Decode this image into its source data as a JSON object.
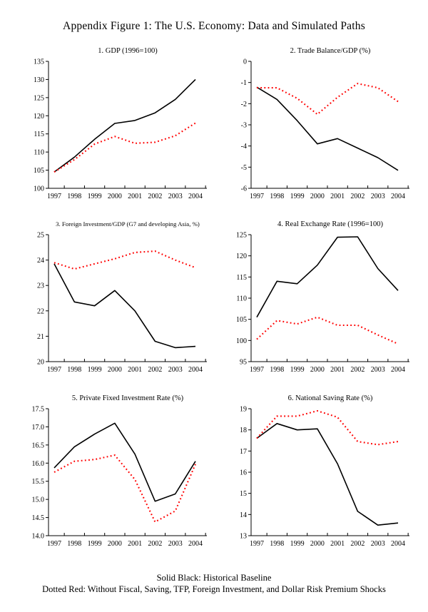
{
  "page": {
    "title": "Appendix Figure 1: The U.S. Economy: Data and Simulated Paths",
    "legend_line1": "Solid Black: Historical Baseline",
    "legend_line2": "Dotted Red: Without Fiscal, Saving, TFP, Foreign Investment, and Dollar Risk Premium Shocks"
  },
  "colors": {
    "baseline": "#000000",
    "counterfactual": "#ff0000",
    "axis": "#000000"
  },
  "chart_data": [
    {
      "type": "line",
      "title": "1. GDP (1996=100)",
      "x": [
        1997,
        1998,
        1999,
        2000,
        2001,
        2002,
        2003,
        2004
      ],
      "ylim": [
        100,
        135
      ],
      "yticks": [
        100,
        105,
        110,
        115,
        120,
        125,
        130,
        135
      ],
      "ytick_labels": [
        "100",
        "105",
        "110",
        "115",
        "120",
        "125",
        "130",
        "135"
      ],
      "series": [
        {
          "name": "Historical Baseline",
          "style": "solid",
          "color": "#000000",
          "values": [
            104.5,
            108.6,
            113.5,
            117.9,
            118.7,
            120.8,
            124.5,
            130.0
          ]
        },
        {
          "name": "Without Shocks",
          "style": "dotted",
          "color": "#ff0000",
          "values": [
            104.5,
            107.9,
            112.2,
            114.3,
            112.4,
            112.7,
            114.5,
            118.0
          ]
        }
      ]
    },
    {
      "type": "line",
      "title": "2. Trade Balance/GDP (%)",
      "x": [
        1997,
        1998,
        1999,
        2000,
        2001,
        2002,
        2003,
        2004
      ],
      "ylim": [
        -6,
        0
      ],
      "yticks": [
        -6,
        -5,
        -4,
        -3,
        -2,
        -1,
        0
      ],
      "ytick_labels": [
        "-6",
        "-5",
        "-4",
        "-3",
        "-2",
        "-1",
        "0"
      ],
      "series": [
        {
          "name": "Historical Baseline",
          "style": "solid",
          "color": "#000000",
          "values": [
            -1.22,
            -1.8,
            -2.8,
            -3.9,
            -3.65,
            -4.1,
            -4.55,
            -5.15
          ]
        },
        {
          "name": "Without Shocks",
          "style": "dotted",
          "color": "#ff0000",
          "values": [
            -1.25,
            -1.25,
            -1.75,
            -2.5,
            -1.7,
            -1.05,
            -1.25,
            -1.9
          ]
        }
      ]
    },
    {
      "type": "line",
      "title": "3. Foreign Investment/GDP (G7 and developing Asia, %)",
      "x": [
        1997,
        1998,
        1999,
        2000,
        2001,
        2002,
        2003,
        2004
      ],
      "ylim": [
        20,
        25
      ],
      "yticks": [
        20,
        21,
        22,
        23,
        24,
        25
      ],
      "ytick_labels": [
        "20",
        "21",
        "22",
        "23",
        "24",
        "25"
      ],
      "series": [
        {
          "name": "Historical Baseline",
          "style": "solid",
          "color": "#000000",
          "values": [
            23.85,
            22.35,
            22.2,
            22.8,
            22.0,
            20.8,
            20.55,
            20.6
          ]
        },
        {
          "name": "Without Shocks",
          "style": "dotted",
          "color": "#ff0000",
          "values": [
            23.9,
            23.65,
            23.85,
            24.05,
            24.3,
            24.35,
            24.0,
            23.7
          ]
        }
      ]
    },
    {
      "type": "line",
      "title": "4. Real Exchange Rate (1996=100)",
      "x": [
        1997,
        1998,
        1999,
        2000,
        2001,
        2002,
        2003,
        2004
      ],
      "ylim": [
        95,
        125
      ],
      "yticks": [
        95,
        100,
        105,
        110,
        115,
        120,
        125
      ],
      "ytick_labels": [
        "95",
        "100",
        "105",
        "110",
        "115",
        "120",
        "125"
      ],
      "series": [
        {
          "name": "Historical Baseline",
          "style": "solid",
          "color": "#000000",
          "values": [
            105.5,
            114.0,
            113.4,
            117.8,
            124.4,
            124.5,
            117.0,
            111.8
          ]
        },
        {
          "name": "Without Shocks",
          "style": "dotted",
          "color": "#ff0000",
          "values": [
            100.3,
            104.7,
            103.9,
            105.5,
            103.6,
            103.6,
            101.3,
            99.2
          ]
        }
      ]
    },
    {
      "type": "line",
      "title": "5. Private Fixed Investment Rate (%)",
      "x": [
        1997,
        1998,
        1999,
        2000,
        2001,
        2002,
        2003,
        2004
      ],
      "ylim": [
        14,
        17.5
      ],
      "yticks": [
        14,
        14.5,
        15,
        15.5,
        16,
        16.5,
        17,
        17.5
      ],
      "ytick_labels": [
        "14.0",
        "14.5",
        "15.0",
        "15.5",
        "16.0",
        "16.5",
        "17.0",
        "17.5"
      ],
      "series": [
        {
          "name": "Historical Baseline",
          "style": "solid",
          "color": "#000000",
          "values": [
            15.87,
            16.45,
            16.8,
            17.1,
            16.25,
            14.95,
            15.15,
            16.05
          ]
        },
        {
          "name": "Without Shocks",
          "style": "dotted",
          "color": "#ff0000",
          "values": [
            15.75,
            16.05,
            16.1,
            16.22,
            15.55,
            14.38,
            14.68,
            15.97
          ]
        }
      ]
    },
    {
      "type": "line",
      "title": "6. National Saving Rate (%)",
      "x": [
        1997,
        1998,
        1999,
        2000,
        2001,
        2002,
        2003,
        2004
      ],
      "ylim": [
        13,
        19
      ],
      "yticks": [
        13,
        14,
        15,
        16,
        17,
        18,
        19
      ],
      "ytick_labels": [
        "13",
        "14",
        "15",
        "16",
        "17",
        "18",
        "19"
      ],
      "series": [
        {
          "name": "Historical Baseline",
          "style": "solid",
          "color": "#000000",
          "values": [
            17.6,
            18.3,
            18.0,
            18.05,
            16.4,
            14.15,
            13.5,
            13.6
          ]
        },
        {
          "name": "Without Shocks",
          "style": "dotted",
          "color": "#ff0000",
          "values": [
            17.6,
            18.65,
            18.65,
            18.9,
            18.6,
            17.45,
            17.3,
            17.45
          ]
        }
      ]
    }
  ]
}
